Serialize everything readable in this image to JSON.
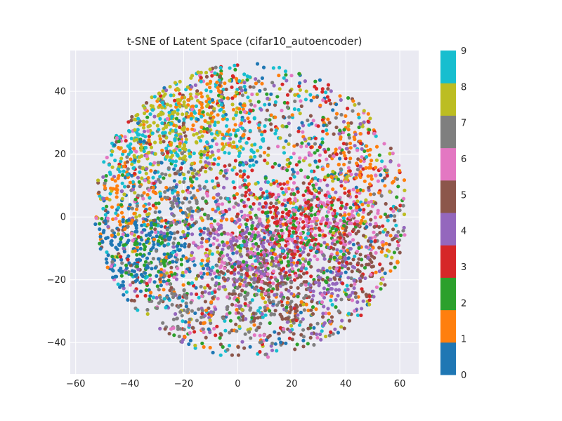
{
  "chart_data": {
    "type": "scatter",
    "title": "t-SNE of Latent Space (cifar10_autoencoder)",
    "xlabel": "",
    "ylabel": "",
    "xlim": [
      -62,
      67
    ],
    "ylim": [
      -50,
      53
    ],
    "x_ticks": [
      -60,
      -40,
      -20,
      0,
      20,
      40,
      60
    ],
    "y_ticks": [
      -40,
      -20,
      0,
      20,
      40
    ],
    "grid": true,
    "background": "#eaeaf2",
    "colormap": "tab10",
    "colorbar": {
      "labels": [
        "0",
        "1",
        "2",
        "3",
        "4",
        "5",
        "6",
        "7",
        "8",
        "9"
      ],
      "colors": [
        "#1f77b4",
        "#ff7f0e",
        "#2ca02c",
        "#d62728",
        "#9467bd",
        "#8c564b",
        "#e377c2",
        "#7f7f7f",
        "#bcbd22",
        "#17becf"
      ]
    },
    "cloud": {
      "center": [
        5,
        2
      ],
      "radius_x": 58,
      "radius_y": 47,
      "point_count_estimate": 10000
    },
    "class_clusters": [
      {
        "label": "0",
        "centers": [
          [
            -38,
            -8
          ],
          [
            -25,
            -6
          ],
          [
            -45,
            -18
          ]
        ]
      },
      {
        "label": "1",
        "centers": [
          [
            -40,
            10
          ],
          [
            45,
            15
          ],
          [
            -10,
            35
          ]
        ]
      },
      {
        "label": "2",
        "centers": [
          [
            -30,
            -10
          ],
          [
            10,
            -10
          ],
          [
            30,
            -5
          ]
        ]
      },
      {
        "label": "3",
        "centers": [
          [
            20,
            -10
          ],
          [
            30,
            0
          ],
          [
            10,
            5
          ]
        ]
      },
      {
        "label": "4",
        "centers": [
          [
            10,
            -15
          ],
          [
            35,
            -20
          ],
          [
            0,
            -10
          ]
        ]
      },
      {
        "label": "5",
        "centers": [
          [
            20,
            -30
          ],
          [
            5,
            -20
          ],
          [
            45,
            -10
          ]
        ]
      },
      {
        "label": "6",
        "centers": [
          [
            25,
            0
          ],
          [
            0,
            -10
          ],
          [
            40,
            0
          ]
        ]
      },
      {
        "label": "7",
        "centers": [
          [
            -20,
            10
          ],
          [
            -25,
            -25
          ],
          [
            10,
            -25
          ]
        ]
      },
      {
        "label": "8",
        "centers": [
          [
            -25,
            25
          ],
          [
            -10,
            30
          ],
          [
            -30,
            35
          ]
        ]
      },
      {
        "label": "9",
        "centers": [
          [
            -25,
            30
          ],
          [
            -40,
            20
          ],
          [
            0,
            28
          ]
        ]
      }
    ]
  }
}
